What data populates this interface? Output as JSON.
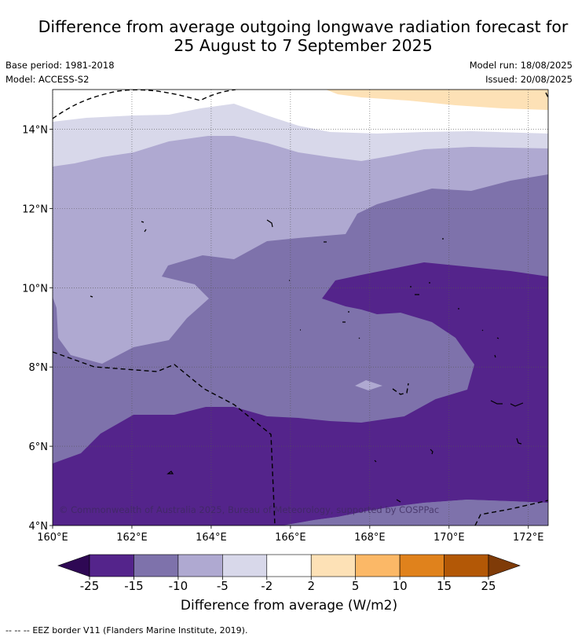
{
  "title": {
    "line1": "Difference from average outgoing longwave radiation forecast for",
    "line2": "25 August to 7 September 2025"
  },
  "meta": {
    "base_period": "Base period: 1981-2018",
    "model": "Model: ACCESS-S2",
    "model_run": "Model run: 18/08/2025",
    "issued": "Issued: 20/08/2025"
  },
  "map": {
    "lon_range": [
      160,
      172.5
    ],
    "lat_range": [
      4,
      15
    ],
    "lon_ticks": [
      "160°E",
      "162°E",
      "164°E",
      "166°E",
      "168°E",
      "170°E",
      "172°E"
    ],
    "lat_ticks": [
      "4°N",
      "6°N",
      "8°N",
      "10°N",
      "12°N",
      "14°N"
    ],
    "copyright": "© Commonwealth of Australia 2025, Bureau of Meteorology, supported by COSPPac"
  },
  "colorbar": {
    "title": "Difference from average (W/m2)",
    "tick_labels": [
      "-25",
      "-15",
      "-10",
      "-5",
      "-2",
      "2",
      "5",
      "10",
      "15",
      "25"
    ],
    "colors": [
      "#2e0854",
      "#54248b",
      "#7e72ab",
      "#afa9d1",
      "#d8d8ea",
      "#ffffff",
      "#fde1b6",
      "#fbb867",
      "#e0821c",
      "#b35806",
      "#7f3b08"
    ]
  },
  "legend": {
    "eez_symbol": "-- -- --",
    "eez_label": "EEZ border V11 (Flanders Marine Institute, 2019)."
  }
}
